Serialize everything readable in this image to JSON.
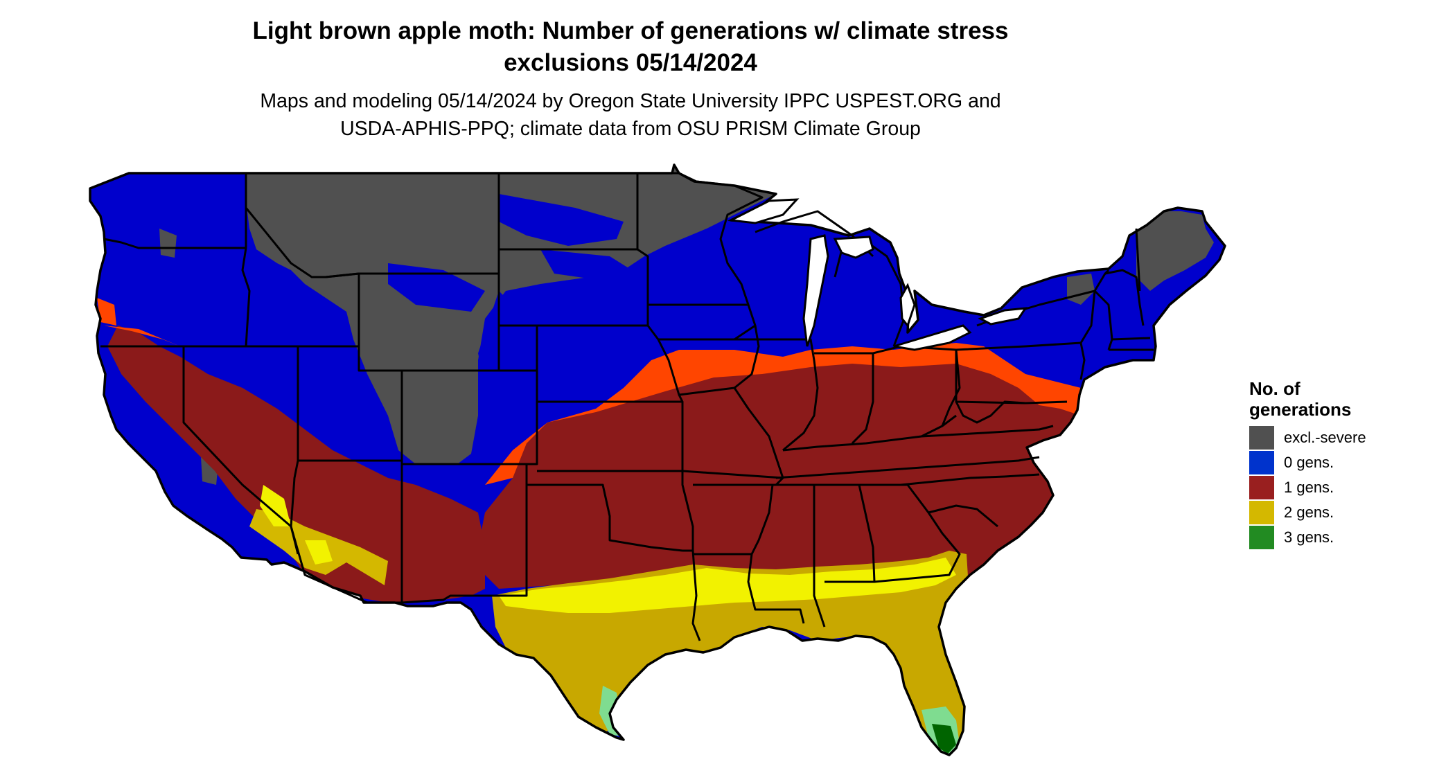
{
  "title_line1": "Light brown apple moth: Number of generations w/ climate stress",
  "title_line2": "exclusions 05/14/2024",
  "subtitle_line1": "Maps and modeling 05/14/2024 by Oregon State University IPPC USPEST.ORG and",
  "subtitle_line2": "USDA-APHIS-PPQ; climate data from OSU PRISM Climate Group",
  "legend": {
    "title_line1": "No. of",
    "title_line2": "generations",
    "items": [
      {
        "label": "excl.-severe",
        "color": "#505050"
      },
      {
        "label": "0 gens.",
        "color": "#0033cc"
      },
      {
        "label": "1 gens.",
        "color": "#991f1f"
      },
      {
        "label": "2 gens.",
        "color": "#d4b800"
      },
      {
        "label": "3 gens.",
        "color": "#228b22"
      }
    ]
  },
  "colors": {
    "excluded": "#505050",
    "zero_gens": "#0000cc",
    "one_gen": "#8b1a1a",
    "one_gen_transition": "#ff4500",
    "two_gens": "#c8a800",
    "two_gens_light": "#f2f200",
    "three_gens": "#006400",
    "three_gens_light": "#7fdc90"
  }
}
